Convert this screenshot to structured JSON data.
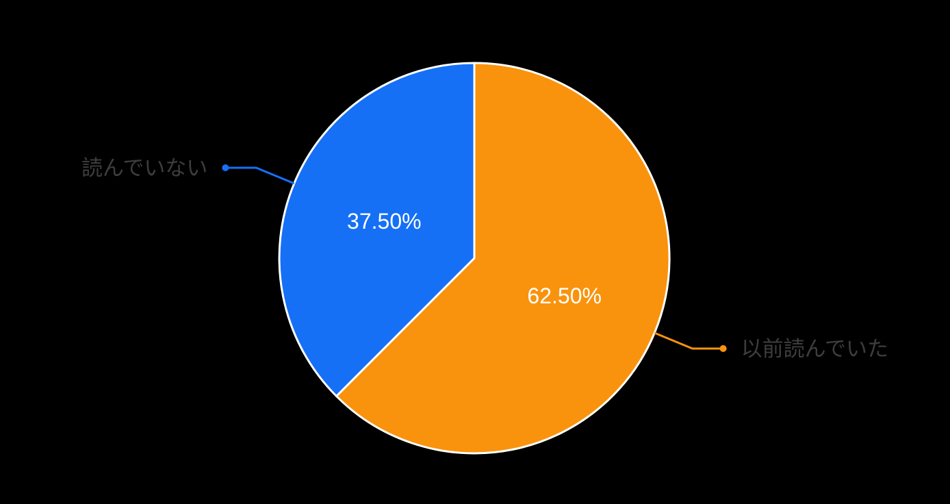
{
  "background_color": "#000000",
  "chart_data": {
    "type": "pie",
    "labels": [
      "以前読んでいた",
      "読んでいない"
    ],
    "values": [
      62.5,
      37.5
    ],
    "value_labels": [
      "62.50%",
      "37.50%"
    ],
    "colors": [
      "#F9930D",
      "#1570F6"
    ],
    "slice_border_color": "#ffffff",
    "value_label_color": "#ffffff",
    "category_label_color": "#3d3d3d",
    "start_angle_deg": 0,
    "direction": "clockwise",
    "legend_position": "none",
    "labels_style": "outside-with-leader-lines"
  }
}
